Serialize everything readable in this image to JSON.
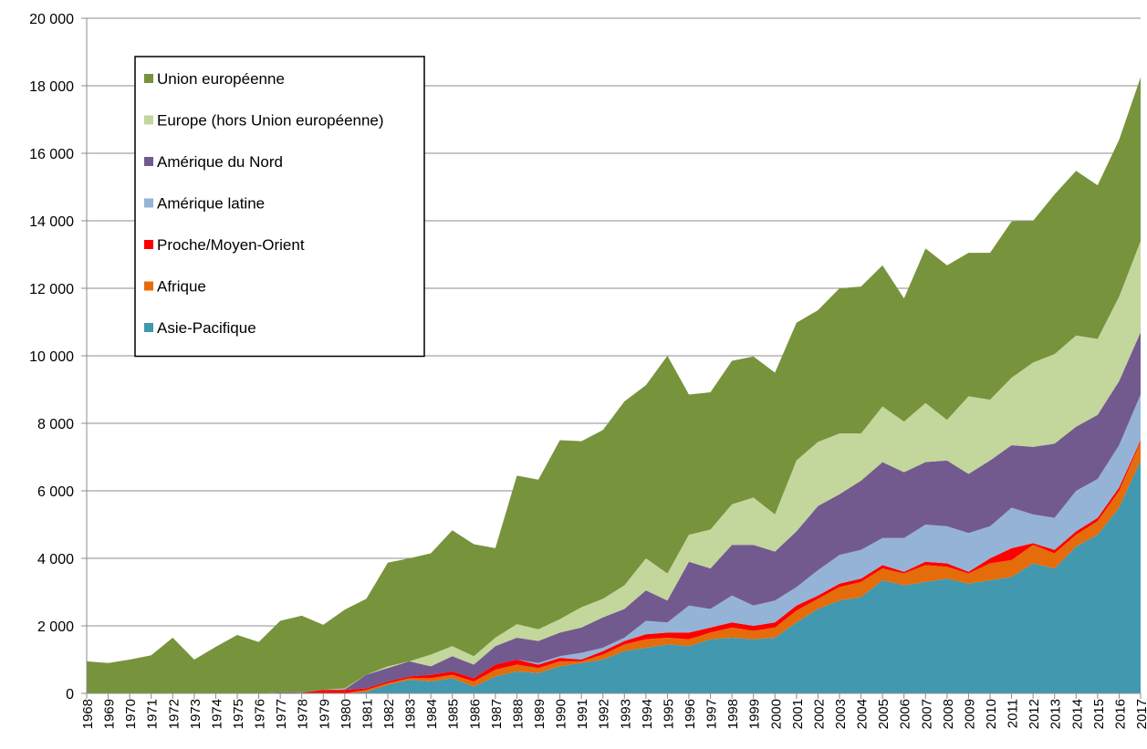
{
  "chart_data": {
    "type": "stacked_area",
    "categories": [
      "1968",
      "1969",
      "1970",
      "1971",
      "1972",
      "1973",
      "1974",
      "1975",
      "1976",
      "1977",
      "1978",
      "1979",
      "1980",
      "1981",
      "1982",
      "1983",
      "1984",
      "1985",
      "1986",
      "1987",
      "1988",
      "1989",
      "1990",
      "1991",
      "1992",
      "1993",
      "1994",
      "1995",
      "1996",
      "1997",
      "1998",
      "1999",
      "2000",
      "2001",
      "2002",
      "2003",
      "2004",
      "2005",
      "2006",
      "2007",
      "2008",
      "2009",
      "2010",
      "2011",
      "2012",
      "2013",
      "2014",
      "2015",
      "2016",
      "2017"
    ],
    "series": [
      {
        "name": "Asie-Pacifique",
        "color": "#4198af",
        "values": [
          0,
          0,
          0,
          0,
          0,
          0,
          0,
          0,
          0,
          0,
          0,
          0,
          0,
          50,
          250,
          400,
          350,
          450,
          200,
          500,
          650,
          600,
          800,
          900,
          1000,
          1250,
          1350,
          1450,
          1400,
          1600,
          1650,
          1600,
          1650,
          2100,
          2500,
          2750,
          2850,
          3350,
          3200,
          3300,
          3400,
          3250,
          3350,
          3450,
          3850,
          3700,
          4350,
          4700,
          5500,
          6900
        ]
      },
      {
        "name": "Afrique",
        "color": "#e46c0a",
        "values": [
          0,
          0,
          0,
          0,
          0,
          0,
          0,
          0,
          0,
          0,
          0,
          0,
          0,
          50,
          50,
          50,
          100,
          100,
          150,
          200,
          200,
          150,
          150,
          50,
          150,
          200,
          250,
          200,
          200,
          200,
          300,
          250,
          300,
          350,
          300,
          400,
          450,
          350,
          350,
          500,
          350,
          300,
          500,
          500,
          550,
          450,
          350,
          400,
          500,
          550
        ]
      },
      {
        "name": "Proche/Moyen-Orient",
        "color": "#ff0000",
        "values": [
          0,
          0,
          0,
          0,
          0,
          0,
          0,
          0,
          0,
          0,
          20,
          100,
          100,
          50,
          50,
          50,
          100,
          100,
          100,
          150,
          150,
          100,
          100,
          50,
          100,
          100,
          150,
          150,
          200,
          150,
          150,
          150,
          150,
          150,
          100,
          100,
          100,
          100,
          50,
          100,
          100,
          50,
          150,
          350,
          50,
          100,
          100,
          100,
          100,
          50
        ]
      },
      {
        "name": "Amérique latine",
        "color": "#95b3d7",
        "values": [
          0,
          0,
          0,
          0,
          0,
          0,
          0,
          0,
          0,
          0,
          0,
          0,
          0,
          0,
          0,
          0,
          0,
          0,
          0,
          0,
          0,
          50,
          50,
          200,
          100,
          100,
          400,
          300,
          800,
          550,
          800,
          600,
          650,
          550,
          750,
          850,
          850,
          800,
          1000,
          1100,
          1100,
          1150,
          950,
          1200,
          850,
          950,
          1200,
          1150,
          1250,
          1350
        ]
      },
      {
        "name": "Amérique du Nord",
        "color": "#725a8f",
        "values": [
          0,
          0,
          0,
          0,
          0,
          0,
          0,
          0,
          0,
          30,
          10,
          0,
          20,
          400,
          400,
          450,
          250,
          450,
          400,
          550,
          650,
          650,
          700,
          750,
          900,
          850,
          900,
          650,
          1300,
          1200,
          1500,
          1800,
          1450,
          1650,
          1900,
          1800,
          2050,
          2250,
          1950,
          1850,
          1950,
          1750,
          1950,
          1850,
          2000,
          2200,
          1900,
          1900,
          1900,
          1850
        ]
      },
      {
        "name": "Europe (hors Union européenne)",
        "color": "#c3d69b",
        "values": [
          0,
          0,
          0,
          0,
          0,
          0,
          0,
          0,
          0,
          0,
          0,
          0,
          30,
          0,
          50,
          0,
          350,
          300,
          250,
          250,
          400,
          350,
          400,
          600,
          550,
          700,
          950,
          800,
          800,
          1150,
          1200,
          1400,
          1100,
          2100,
          1900,
          1800,
          1400,
          1650,
          1500,
          1750,
          1200,
          2300,
          1800,
          2000,
          2500,
          2650,
          2700,
          2250,
          2500,
          2700
        ]
      },
      {
        "name": "Union européenne",
        "color": "#77933c",
        "values": [
          950,
          900,
          1000,
          1130,
          1650,
          1000,
          1380,
          1730,
          1520,
          2120,
          2270,
          1930,
          2330,
          2250,
          3070,
          3050,
          3000,
          3430,
          3320,
          2650,
          4400,
          4430,
          5300,
          4920,
          5000,
          5450,
          5130,
          6450,
          4150,
          4070,
          4250,
          4180,
          4200,
          4080,
          3900,
          4300,
          4350,
          4180,
          3650,
          4580,
          4580,
          4250,
          4350,
          4630,
          4200,
          4730,
          4880,
          4550,
          4650,
          4850
        ]
      }
    ],
    "ylim": [
      0,
      20000
    ],
    "yticks": [
      0,
      {
        "value": 2000,
        "label": "2 000"
      },
      {
        "value": 4000,
        "label": "4 000"
      },
      {
        "value": 6000,
        "label": "6 000"
      },
      {
        "value": 8000,
        "label": "8 000"
      },
      {
        "value": 10000,
        "label": "10 000"
      },
      {
        "value": 12000,
        "label": "12 000"
      },
      {
        "value": 14000,
        "label": "14 000"
      },
      {
        "value": 16000,
        "label": "16 000"
      },
      {
        "value": 18000,
        "label": "18 000"
      },
      {
        "value": 20000,
        "label": "20 000"
      }
    ],
    "grid": true,
    "legend": "upper left"
  }
}
